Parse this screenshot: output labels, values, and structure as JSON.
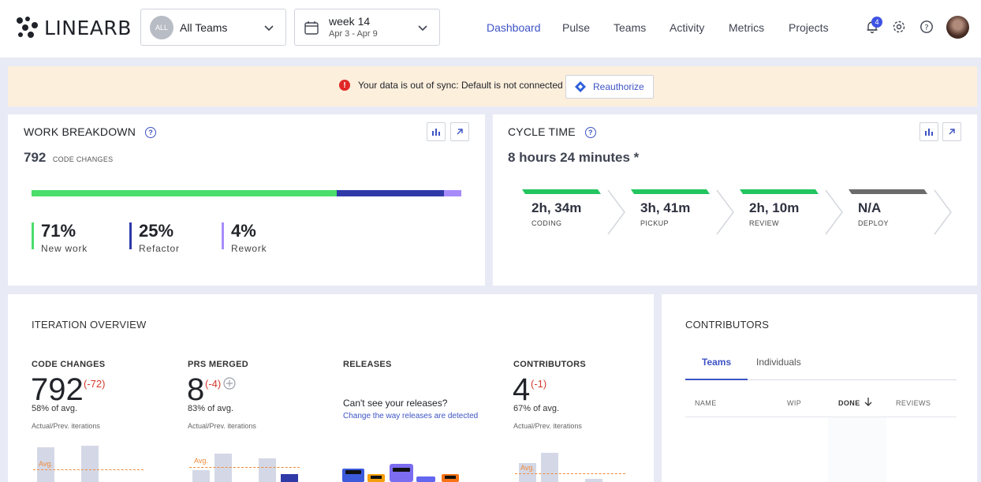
{
  "header": {
    "logo_text": "LINEARB",
    "team_badge": "ALL",
    "team_select": "All Teams",
    "week_title": "week 14",
    "week_range": "Apr 3 - Apr 9",
    "nav": [
      "Dashboard",
      "Pulse",
      "Teams",
      "Activity",
      "Metrics",
      "Projects"
    ],
    "active_nav": "Dashboard",
    "notification_count": "4"
  },
  "banner": {
    "message": "Your data is out of sync: Default is not connected",
    "button": "Reauthorize"
  },
  "work_breakdown": {
    "title": "WORK BREAKDOWN",
    "total": "792",
    "total_label": "CODE CHANGES",
    "segments": [
      {
        "value": "71%",
        "label": "New work",
        "fraction": 0.71,
        "color": "#4ade6a"
      },
      {
        "value": "25%",
        "label": "Refactor",
        "fraction": 0.25,
        "color": "#2f3aa8"
      },
      {
        "value": "4%",
        "label": "Rework",
        "fraction": 0.04,
        "color": "#a78bfa"
      }
    ]
  },
  "cycle_time": {
    "title": "CYCLE TIME",
    "total": "8 hours 24 minutes *",
    "stages": [
      {
        "value": "2h, 34m",
        "label": "CODING",
        "color": "#22c55e"
      },
      {
        "value": "3h, 41m",
        "label": "PICKUP",
        "color": "#22c55e"
      },
      {
        "value": "2h, 10m",
        "label": "REVIEW",
        "color": "#22c55e"
      },
      {
        "value": "N/A",
        "label": "DEPLOY",
        "color": "#6b6b6b"
      }
    ]
  },
  "iteration": {
    "title": "ITERATION OVERVIEW",
    "code_changes": {
      "head": "CODE CHANGES",
      "value": "792",
      "delta": "(-72)",
      "avg": "58% of avg.",
      "note": "Actual/Prev. iterations",
      "avg_label": "Avg."
    },
    "prs_merged": {
      "head": "PRS MERGED",
      "value": "8",
      "delta": "(-4)",
      "avg": "83% of avg.",
      "note": "Actual/Prev. iterations",
      "avg_label": "Avg."
    },
    "releases": {
      "head": "RELEASES",
      "question": "Can't see your releases?",
      "link": "Change the way releases are detected"
    },
    "contributors": {
      "head": "CONTRIBUTORS",
      "value": "4",
      "delta": "(-1)",
      "avg": "67% of avg.",
      "note": "Actual/Prev. iterations",
      "avg_label": "Avg."
    }
  },
  "contributors": {
    "title": "CONTRIBUTORS",
    "tabs": [
      "Teams",
      "Individuals"
    ],
    "columns": [
      "NAME",
      "WIP",
      "DONE",
      "REVIEWS"
    ]
  },
  "colors": {
    "accent": "#3d53c4",
    "error": "#e02828",
    "delta": "#d43a2c",
    "avg": "#f08a3a"
  }
}
